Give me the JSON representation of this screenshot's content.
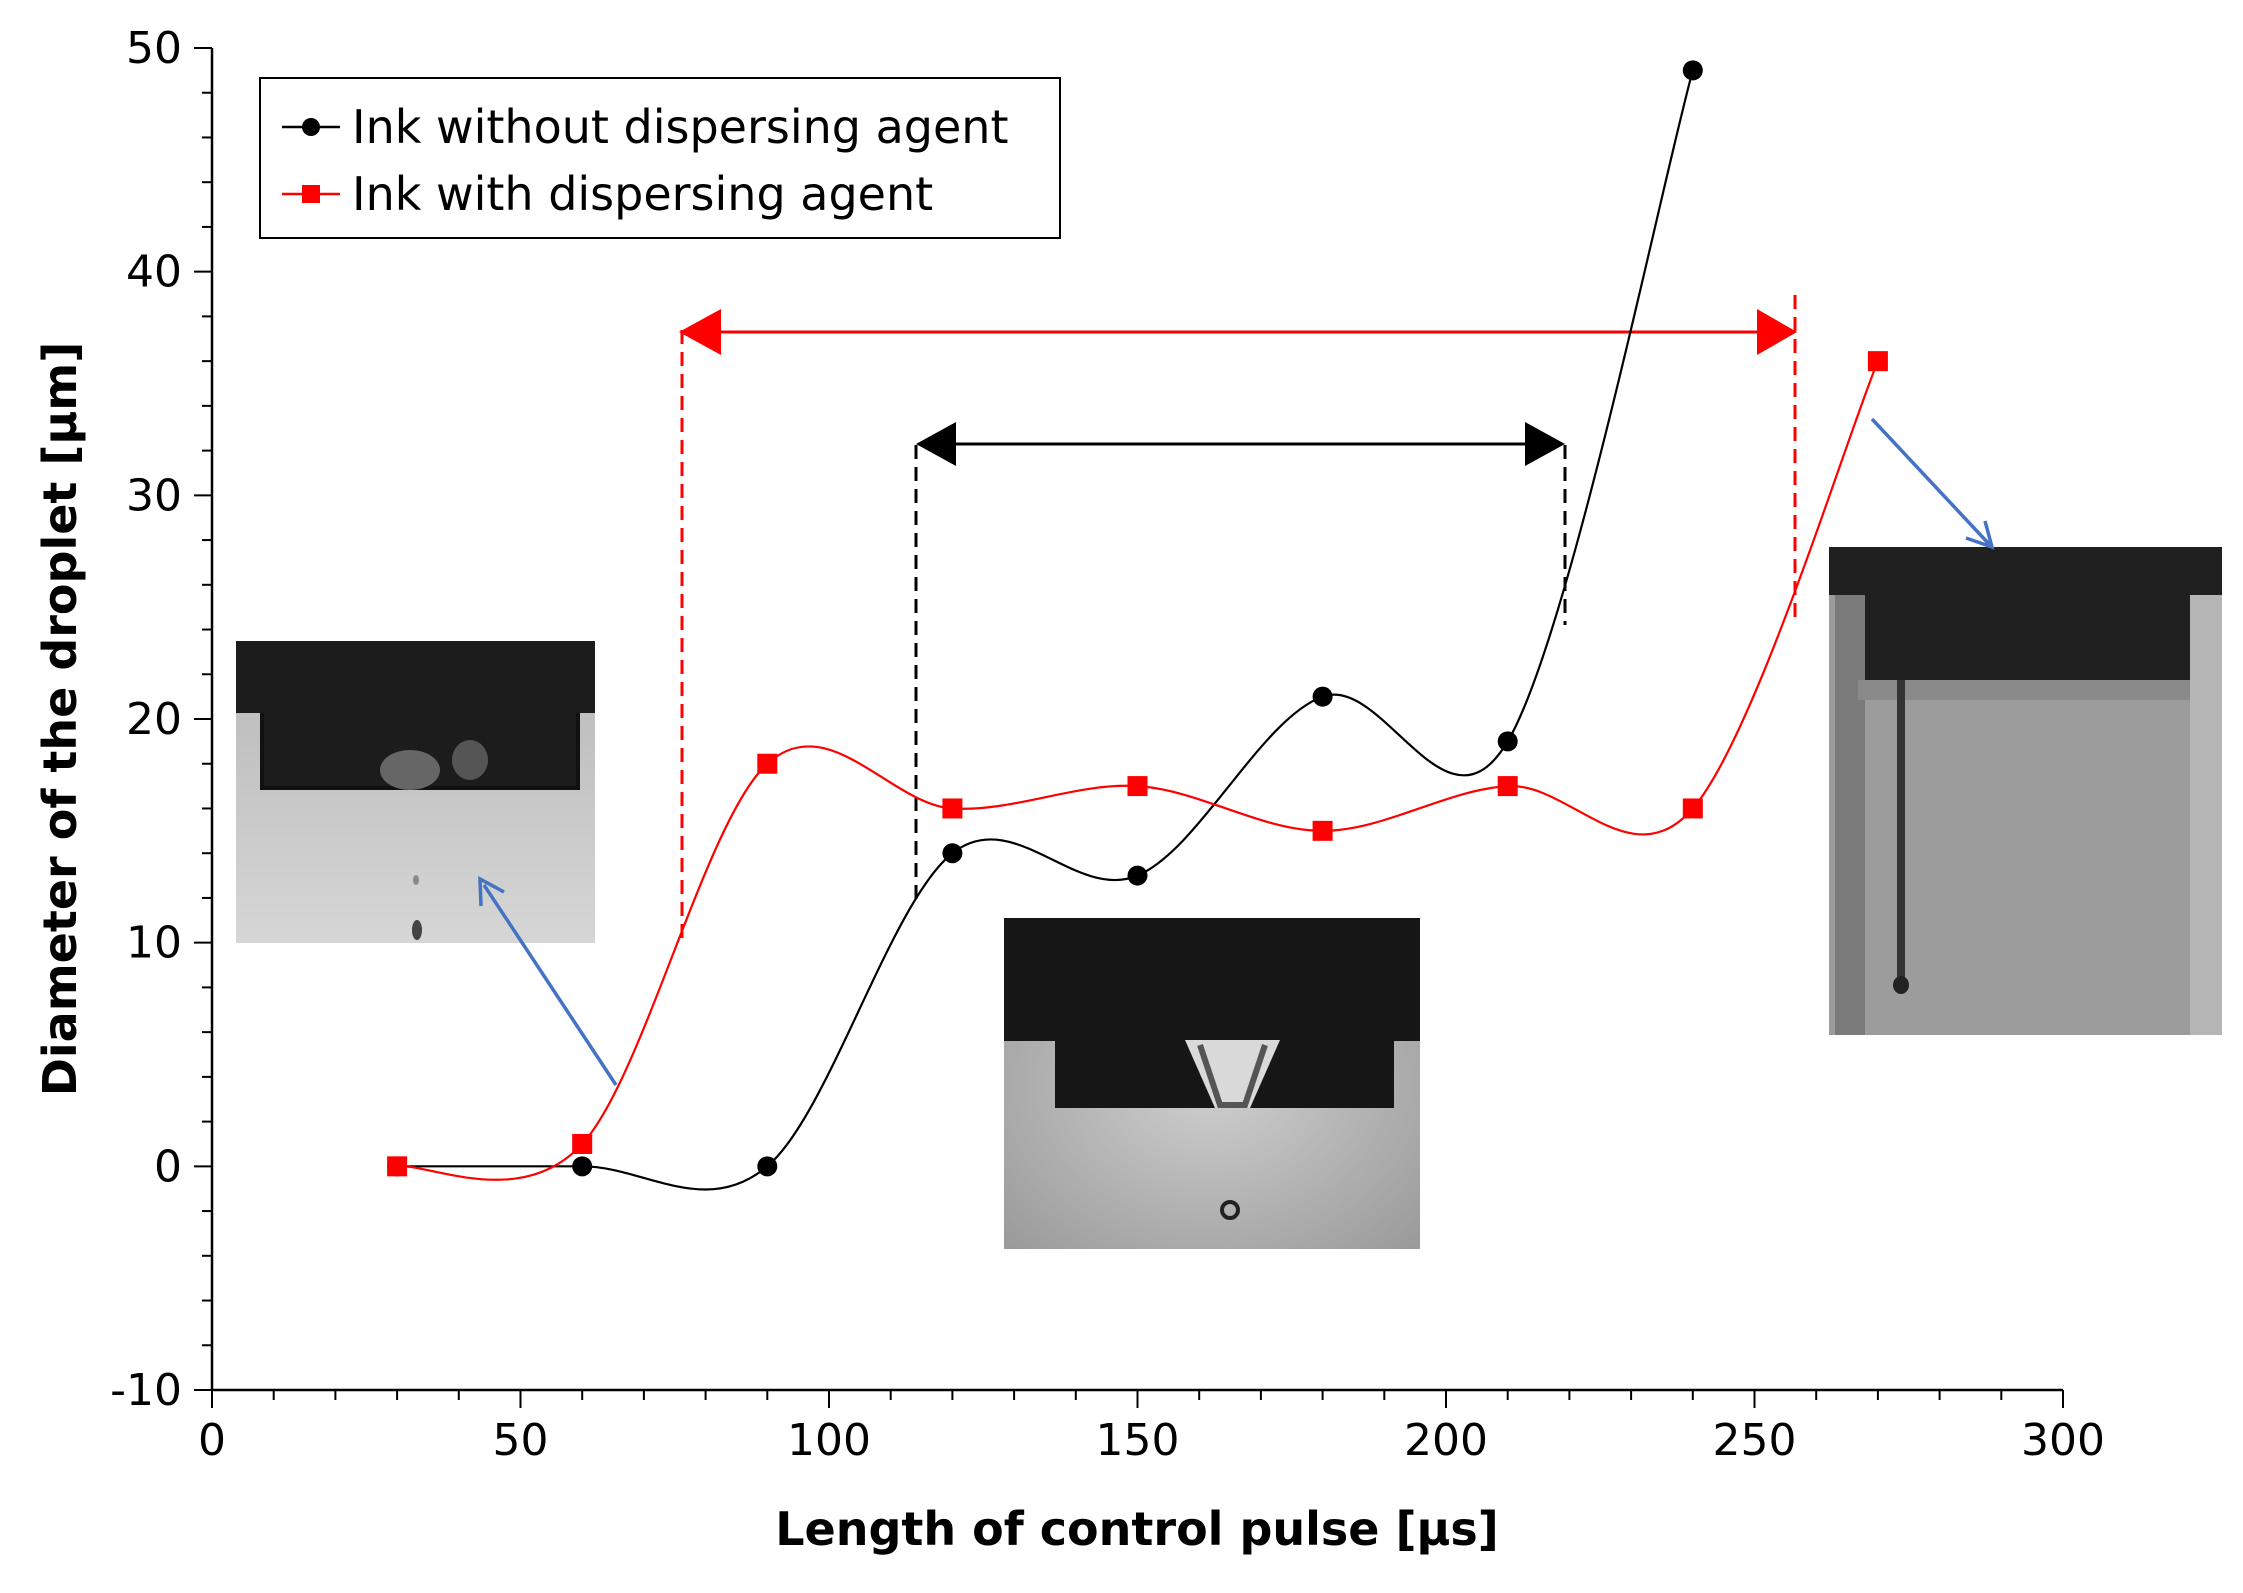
{
  "chart_data": {
    "type": "line",
    "xlabel": "Length of control pulse [μs]",
    "ylabel": "Diameter of the droplet [μm]",
    "xlim": [
      0,
      300
    ],
    "ylim": [
      -10,
      50
    ],
    "x_ticks": [
      0,
      50,
      100,
      150,
      200,
      250,
      300
    ],
    "y_ticks": [
      -10,
      0,
      10,
      20,
      30,
      40,
      50
    ],
    "grid": false,
    "legend_position": "top-left",
    "series": [
      {
        "name": "Ink without dispersing agent",
        "color": "#000000",
        "marker": "circle",
        "x": [
          30,
          60,
          90,
          120,
          150,
          180,
          210,
          240
        ],
        "y": [
          0,
          0,
          0,
          14,
          13,
          21,
          19,
          49
        ]
      },
      {
        "name": "Ink with dispersing agent",
        "color": "#ff0000",
        "marker": "square",
        "x": [
          30,
          60,
          90,
          120,
          150,
          180,
          210,
          240,
          270
        ],
        "y": [
          0,
          1,
          18,
          16,
          17,
          15,
          17,
          16,
          36
        ]
      }
    ],
    "annotations": {
      "red_range": {
        "x_start": 76,
        "x_end": 257,
        "y": 37.5,
        "color": "#ff0000"
      },
      "black_range": {
        "x_start": 114,
        "x_end": 220,
        "y": 32.5,
        "color": "#000000"
      },
      "arrow_color": "#4472c4",
      "insets": [
        {
          "name": "left-droplet-image",
          "description_icon": "nozzle-photo-icon"
        },
        {
          "name": "center-droplet-image",
          "description_icon": "nozzle-photo-icon"
        },
        {
          "name": "right-droplet-image",
          "description_icon": "nozzle-photo-icon"
        }
      ]
    }
  }
}
